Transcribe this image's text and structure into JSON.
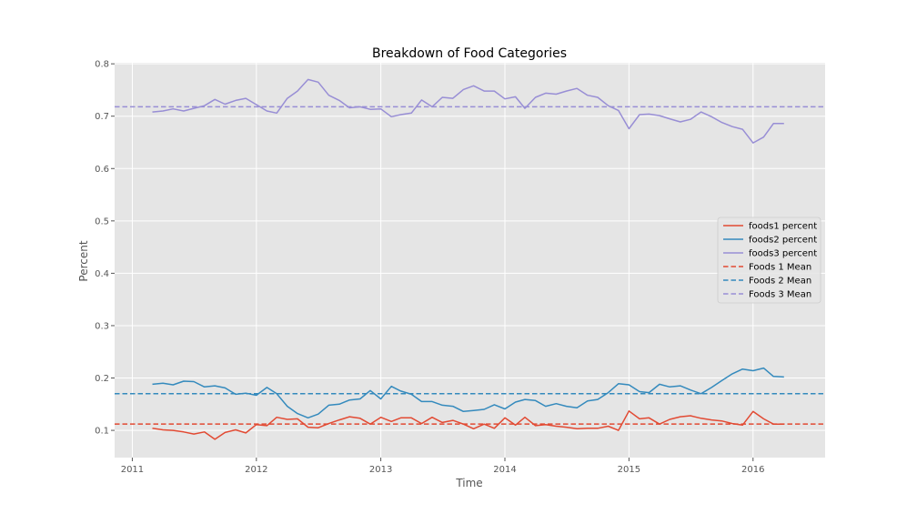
{
  "chart_data": {
    "type": "line",
    "title": "Breakdown of Food Categories",
    "xlabel": "Time",
    "ylabel": "Percent",
    "xlim": [
      "2010-11-10",
      "2016-07-31"
    ],
    "ylim": [
      0.048,
      0.802
    ],
    "x_ticks": [
      "2011",
      "2012",
      "2013",
      "2014",
      "2015",
      "2016"
    ],
    "y_ticks": [
      0.1,
      0.2,
      0.3,
      0.4,
      0.5,
      0.6,
      0.7,
      0.8
    ],
    "grid": true,
    "legend_position": "center-right",
    "x": [
      "2011-03",
      "2011-04",
      "2011-05",
      "2011-06",
      "2011-07",
      "2011-08",
      "2011-09",
      "2011-10",
      "2011-11",
      "2011-12",
      "2012-01",
      "2012-02",
      "2012-03",
      "2012-04",
      "2012-05",
      "2012-06",
      "2012-07",
      "2012-08",
      "2012-09",
      "2012-10",
      "2012-11",
      "2012-12",
      "2013-01",
      "2013-02",
      "2013-03",
      "2013-04",
      "2013-05",
      "2013-06",
      "2013-07",
      "2013-08",
      "2013-09",
      "2013-10",
      "2013-11",
      "2013-12",
      "2014-01",
      "2014-02",
      "2014-03",
      "2014-04",
      "2014-05",
      "2014-06",
      "2014-07",
      "2014-08",
      "2014-09",
      "2014-10",
      "2014-11",
      "2014-12",
      "2015-01",
      "2015-02",
      "2015-03",
      "2015-04",
      "2015-05",
      "2015-06",
      "2015-07",
      "2015-08",
      "2015-09",
      "2015-10",
      "2015-11",
      "2015-12",
      "2016-01",
      "2016-02",
      "2016-03",
      "2016-04"
    ],
    "series": [
      {
        "name": "foods1 percent",
        "color": "#E24A33",
        "style": "solid",
        "values": [
          0.104,
          0.101,
          0.1,
          0.097,
          0.093,
          0.097,
          0.083,
          0.096,
          0.101,
          0.095,
          0.111,
          0.109,
          0.125,
          0.121,
          0.122,
          0.106,
          0.105,
          0.113,
          0.12,
          0.126,
          0.123,
          0.112,
          0.125,
          0.117,
          0.124,
          0.124,
          0.113,
          0.125,
          0.115,
          0.119,
          0.112,
          0.103,
          0.112,
          0.104,
          0.124,
          0.11,
          0.125,
          0.109,
          0.111,
          0.108,
          0.106,
          0.103,
          0.104,
          0.104,
          0.108,
          0.1,
          0.137,
          0.122,
          0.124,
          0.112,
          0.121,
          0.126,
          0.128,
          0.123,
          0.12,
          0.118,
          0.113,
          0.11,
          0.136,
          0.122,
          0.112,
          0.112
        ]
      },
      {
        "name": "foods2 percent",
        "color": "#348ABD",
        "style": "solid",
        "values": [
          0.188,
          0.19,
          0.187,
          0.194,
          0.193,
          0.183,
          0.185,
          0.181,
          0.169,
          0.171,
          0.167,
          0.182,
          0.17,
          0.146,
          0.132,
          0.124,
          0.131,
          0.148,
          0.15,
          0.158,
          0.16,
          0.176,
          0.16,
          0.184,
          0.175,
          0.169,
          0.155,
          0.155,
          0.148,
          0.146,
          0.136,
          0.138,
          0.14,
          0.149,
          0.141,
          0.154,
          0.159,
          0.157,
          0.146,
          0.151,
          0.146,
          0.143,
          0.156,
          0.159,
          0.172,
          0.189,
          0.187,
          0.174,
          0.172,
          0.188,
          0.183,
          0.185,
          0.177,
          0.17,
          0.182,
          0.195,
          0.208,
          0.217,
          0.214,
          0.219,
          0.203,
          0.202
        ]
      },
      {
        "name": "foods3 percent",
        "color": "#988ED5",
        "style": "solid",
        "values": [
          0.708,
          0.71,
          0.714,
          0.71,
          0.715,
          0.72,
          0.732,
          0.723,
          0.73,
          0.734,
          0.722,
          0.71,
          0.706,
          0.734,
          0.748,
          0.77,
          0.765,
          0.74,
          0.73,
          0.716,
          0.718,
          0.713,
          0.714,
          0.699,
          0.703,
          0.706,
          0.731,
          0.718,
          0.736,
          0.734,
          0.751,
          0.758,
          0.748,
          0.748,
          0.733,
          0.737,
          0.715,
          0.736,
          0.744,
          0.742,
          0.748,
          0.753,
          0.74,
          0.736,
          0.72,
          0.711,
          0.676,
          0.703,
          0.704,
          0.701,
          0.695,
          0.689,
          0.694,
          0.708,
          0.699,
          0.688,
          0.68,
          0.675,
          0.649,
          0.66,
          0.686,
          0.686
        ]
      },
      {
        "name": "Foods 1 Mean",
        "color": "#E24A33",
        "style": "dashed",
        "value": 0.112
      },
      {
        "name": "Foods 2 Mean",
        "color": "#348ABD",
        "style": "dashed",
        "value": 0.17
      },
      {
        "name": "Foods 3 Mean",
        "color": "#988ED5",
        "style": "dashed",
        "value": 0.718
      }
    ]
  }
}
